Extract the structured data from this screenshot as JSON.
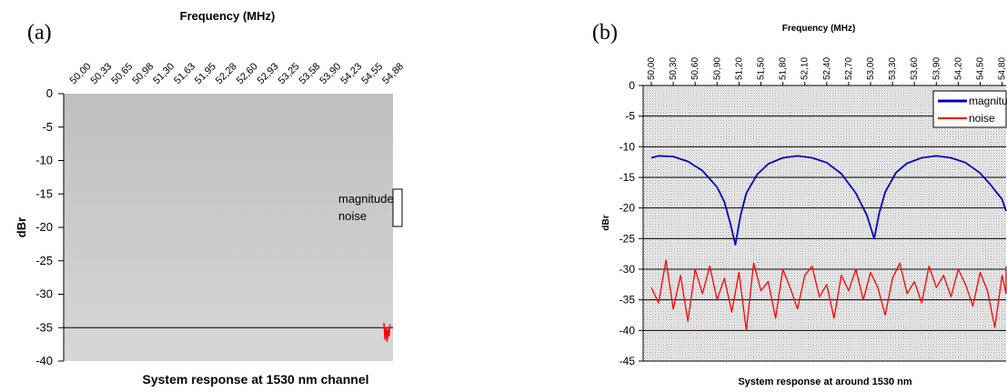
{
  "chart_data": [
    {
      "panel_label": "(a)",
      "type": "line",
      "title": "System response at 1530 nm channel",
      "xlabel": "Frequency (MHz)",
      "ylabel": "dBr",
      "ylim": [
        -40,
        0
      ],
      "yticks": [
        "0",
        "-5",
        "-10",
        "-15",
        "-20",
        "-25",
        "-30",
        "-35",
        "-40"
      ],
      "xticks": [
        "50,00",
        "50,33",
        "50,65",
        "50,98",
        "51,30",
        "51,63",
        "51,95",
        "52,28",
        "52,60",
        "52,93",
        "53,25",
        "53,58",
        "53,90",
        "54,23",
        "54,55",
        "54,88"
      ],
      "legend": {
        "placement": "right",
        "entries": [
          "magnitude",
          "noise"
        ]
      },
      "plot_colors": {
        "bg_top": "#bfbfbf",
        "bg_bottom": "#d6d6d6"
      },
      "series": [
        {
          "name": "magnitude",
          "color": "#000000",
          "x": [
            0,
            1
          ],
          "y": [
            -35,
            -35
          ]
        },
        {
          "name": "noise",
          "color": "#ff0000",
          "x": [
            0.9725,
            0.976,
            0.979,
            0.982,
            0.985,
            0.988,
            0.991
          ],
          "y": [
            -34.3,
            -36.8,
            -34.9,
            -37.1,
            -35.2,
            -36.3,
            -34.5
          ]
        }
      ]
    },
    {
      "panel_label": "(b)",
      "type": "line",
      "title": "System response at around 1530 nm",
      "xlabel": "Frequency (MHz)",
      "ylabel": "dBr",
      "ylim": [
        -45,
        0
      ],
      "yticks": [
        "0",
        "-5",
        "-10",
        "-15",
        "-20",
        "-25",
        "-30",
        "-35",
        "-40",
        "-45"
      ],
      "xticks": [
        "50,00",
        "50,30",
        "50,60",
        "50,90",
        "51,20",
        "51,50",
        "51,80",
        "52,10",
        "52,40",
        "52,70",
        "53,00",
        "53,30",
        "53,60",
        "53,90",
        "54,20",
        "54,50",
        "54,80"
      ],
      "legend": {
        "placement": "top-right",
        "entries": [
          "magnitude",
          "noise"
        ]
      },
      "grid": true,
      "series": [
        {
          "name": "magnitude",
          "color": "#0000c0",
          "x": [
            50.0,
            50.1,
            50.3,
            50.5,
            50.7,
            50.9,
            51.0,
            51.08,
            51.15,
            51.22,
            51.3,
            51.45,
            51.6,
            51.8,
            52.0,
            52.2,
            52.4,
            52.6,
            52.8,
            52.95,
            53.05,
            53.12,
            53.2,
            53.35,
            53.5,
            53.7,
            53.9,
            54.1,
            54.3,
            54.5,
            54.65,
            54.8,
            54.95
          ],
          "y": [
            -11.8,
            -11.5,
            -11.6,
            -12.4,
            -13.9,
            -16.6,
            -19.0,
            -22.5,
            -26.0,
            -21.3,
            -17.6,
            -14.5,
            -12.8,
            -11.8,
            -11.5,
            -11.8,
            -12.6,
            -14.4,
            -17.6,
            -21.2,
            -25.0,
            -20.8,
            -17.4,
            -14.2,
            -12.7,
            -11.8,
            -11.5,
            -11.8,
            -12.6,
            -14.3,
            -16.3,
            -18.6,
            -20.5
          ]
        },
        {
          "name": "noise",
          "color": "#ff0000",
          "x": [
            50.0,
            50.1,
            50.2,
            50.3,
            50.4,
            50.5,
            50.6,
            50.7,
            50.8,
            50.9,
            51.0,
            51.1,
            51.2,
            51.3,
            51.4,
            51.5,
            51.6,
            51.7,
            51.8,
            51.9,
            52.0,
            52.1,
            52.2,
            52.3,
            52.4,
            52.5,
            52.6,
            52.7,
            52.8,
            52.9,
            53.0,
            53.1,
            53.2,
            53.3,
            53.4,
            53.5,
            53.6,
            53.7,
            53.8,
            53.9,
            54.0,
            54.1,
            54.2,
            54.3,
            54.4,
            54.5,
            54.6,
            54.7,
            54.8,
            54.9,
            54.97
          ],
          "y": [
            -33.0,
            -35.5,
            -28.5,
            -36.5,
            -31.0,
            -38.5,
            -30.0,
            -34.0,
            -29.5,
            -35.0,
            -31.5,
            -37.0,
            -30.5,
            -40.0,
            -29.0,
            -33.5,
            -32.0,
            -38.0,
            -30.0,
            -33.0,
            -36.5,
            -31.0,
            -29.5,
            -34.5,
            -32.5,
            -38.0,
            -31.0,
            -33.5,
            -30.0,
            -35.0,
            -30.5,
            -33.0,
            -37.5,
            -31.5,
            -29.0,
            -34.0,
            -32.0,
            -35.5,
            -29.5,
            -33.0,
            -31.0,
            -34.5,
            -30.0,
            -32.5,
            -36.0,
            -30.5,
            -33.5,
            -39.5,
            -31.0,
            -34.0,
            -29.5
          ]
        }
      ]
    }
  ]
}
